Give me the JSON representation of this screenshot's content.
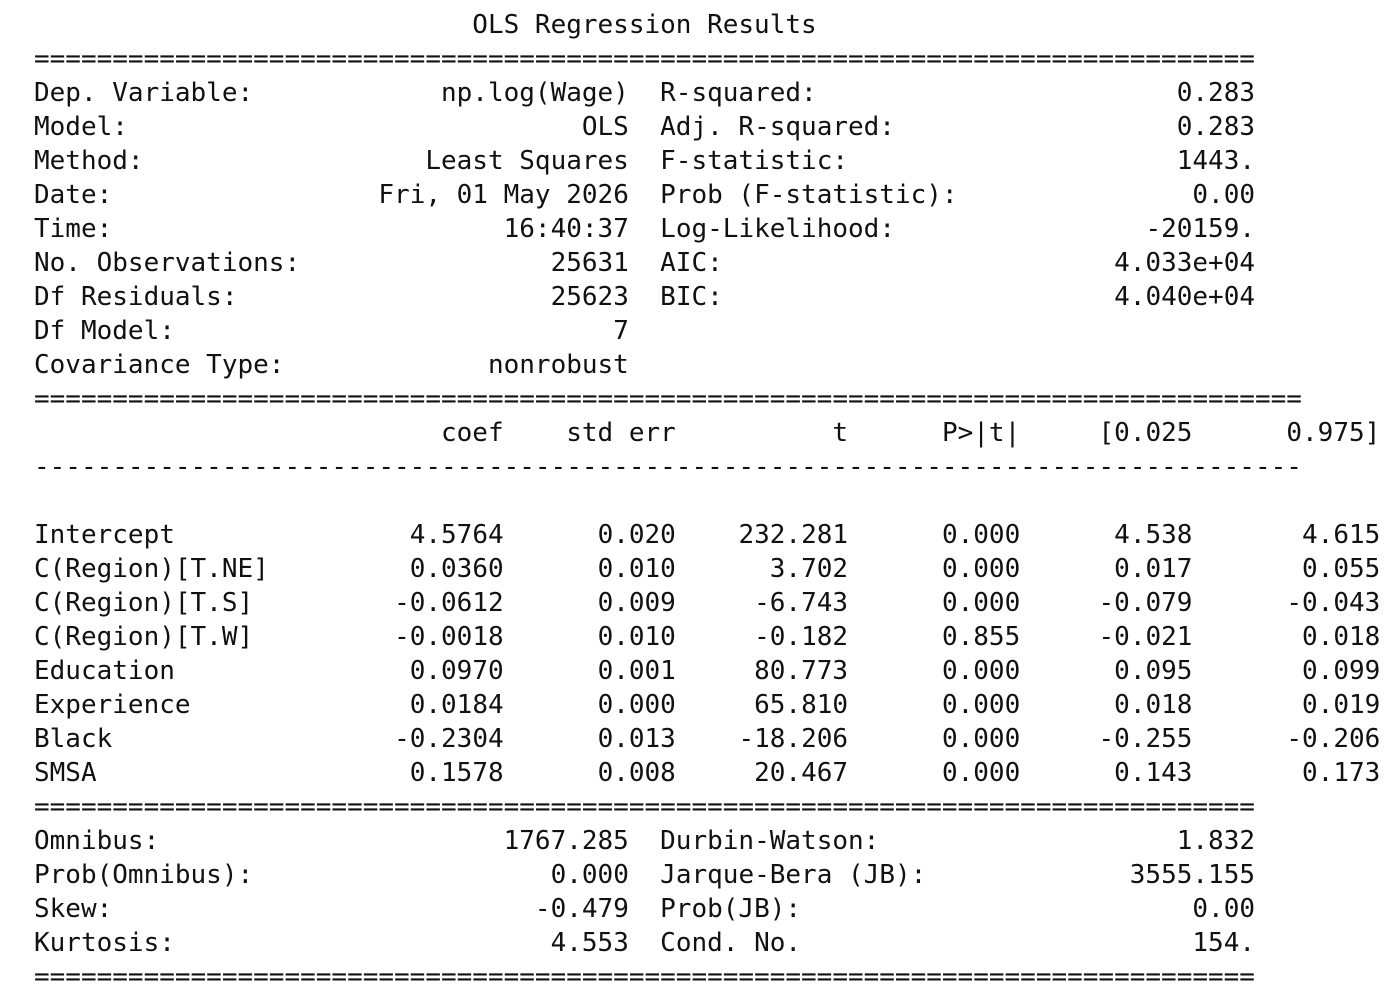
{
  "title": "OLS Regression Results",
  "rules": {
    "double_short": "==============================================================================",
    "double_long": "=================================================================================",
    "single_long": "---------------------------------------------------------------------------------"
  },
  "summary": [
    {
      "label": "Dep. Variable:",
      "value": "np.log(Wage)",
      "label2": "R-squared:",
      "value2": "0.283"
    },
    {
      "label": "Model:",
      "value": "OLS",
      "label2": "Adj. R-squared:",
      "value2": "0.283"
    },
    {
      "label": "Method:",
      "value": "Least Squares",
      "label2": "F-statistic:",
      "value2": "1443."
    },
    {
      "label": "Date:",
      "value": "Fri, 01 May 2026",
      "label2": "Prob (F-statistic):",
      "value2": "0.00"
    },
    {
      "label": "Time:",
      "value": "16:40:37",
      "label2": "Log-Likelihood:",
      "value2": "-20159."
    },
    {
      "label": "No. Observations:",
      "value": "25631",
      "label2": "AIC:",
      "value2": "4.033e+04"
    },
    {
      "label": "Df Residuals:",
      "value": "25623",
      "label2": "BIC:",
      "value2": "4.040e+04"
    },
    {
      "label": "Df Model:",
      "value": "7",
      "label2": "",
      "value2": ""
    },
    {
      "label": "Covariance Type:",
      "value": "nonrobust",
      "label2": "",
      "value2": ""
    }
  ],
  "coef_table": {
    "headers": [
      "",
      "coef",
      "std err",
      "t",
      "P>|t|",
      "[0.025",
      "0.975]"
    ],
    "rows": [
      [
        "Intercept",
        "4.5764",
        "0.020",
        "232.281",
        "0.000",
        "4.538",
        "4.615"
      ],
      [
        "C(Region)[T.NE]",
        "0.0360",
        "0.010",
        "3.702",
        "0.000",
        "0.017",
        "0.055"
      ],
      [
        "C(Region)[T.S]",
        "-0.0612",
        "0.009",
        "-6.743",
        "0.000",
        "-0.079",
        "-0.043"
      ],
      [
        "C(Region)[T.W]",
        "-0.0018",
        "0.010",
        "-0.182",
        "0.855",
        "-0.021",
        "0.018"
      ],
      [
        "Education",
        "0.0970",
        "0.001",
        "80.773",
        "0.000",
        "0.095",
        "0.099"
      ],
      [
        "Experience",
        "0.0184",
        "0.000",
        "65.810",
        "0.000",
        "0.018",
        "0.019"
      ],
      [
        "Black",
        "-0.2304",
        "0.013",
        "-18.206",
        "0.000",
        "-0.255",
        "-0.206"
      ],
      [
        "SMSA",
        "0.1578",
        "0.008",
        "20.467",
        "0.000",
        "0.143",
        "0.173"
      ]
    ]
  },
  "diagnostics": [
    {
      "label": "Omnibus:",
      "value": "1767.285",
      "label2": "Durbin-Watson:",
      "value2": "1.832"
    },
    {
      "label": "Prob(Omnibus):",
      "value": "0.000",
      "label2": "Jarque-Bera (JB):",
      "value2": "3555.155"
    },
    {
      "label": "Skew:",
      "value": "-0.479",
      "label2": "Prob(JB):",
      "value2": "0.00"
    },
    {
      "label": "Kurtosis:",
      "value": "4.553",
      "label2": "Cond. No.",
      "value2": "154."
    }
  ]
}
